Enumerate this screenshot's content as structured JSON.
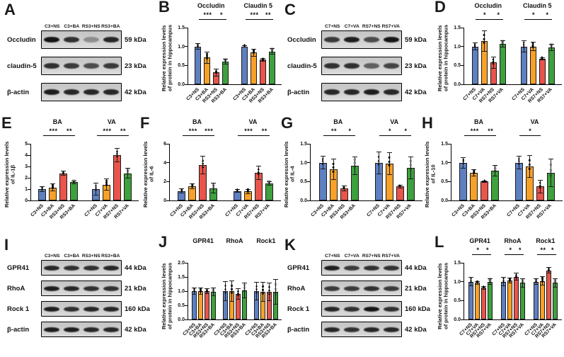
{
  "colors": {
    "bar_series": [
      "#5e80c1",
      "#f7a128",
      "#e9544b",
      "#3ea13e"
    ],
    "axis": "#000000",
    "background": "#ffffff"
  },
  "marker_glyphs": [
    "●",
    "■",
    "▲",
    "▽"
  ],
  "blots": [
    {
      "panel": "A",
      "lanes": [
        "C3+NS",
        "C3+BA",
        "RS3+NS",
        "RS3+BA"
      ],
      "rows": [
        {
          "protein": "Occludin",
          "kda": "59 kDa",
          "band_intensity": [
            1.0,
            0.85,
            0.35,
            0.9
          ]
        },
        {
          "protein": "claudin-5",
          "kda": "23 kDa",
          "band_intensity": [
            0.85,
            0.8,
            0.7,
            0.8
          ]
        },
        {
          "protein": "β-actin",
          "kda": "42 kDa",
          "band_intensity": [
            0.95,
            0.9,
            0.9,
            0.9
          ]
        }
      ]
    },
    {
      "panel": "C",
      "lanes": [
        "C7+NS",
        "C7+VA",
        "RS7+NS",
        "RS7+VA"
      ],
      "rows": [
        {
          "protein": "Occludin",
          "kda": "59 kDa",
          "band_intensity": [
            0.8,
            0.95,
            0.7,
            1.0
          ]
        },
        {
          "protein": "claudin-5",
          "kda": "23 kDa",
          "band_intensity": [
            0.85,
            0.85,
            0.6,
            0.75
          ]
        },
        {
          "protein": "β-actin",
          "kda": "42 kDa",
          "band_intensity": [
            0.9,
            0.9,
            0.95,
            0.9
          ]
        }
      ]
    },
    {
      "panel": "I",
      "lanes": [
        "C3+NS",
        "C3+BA",
        "RS3+NS",
        "RS3+BA"
      ],
      "rows": [
        {
          "protein": "GPR41",
          "kda": "44 kDa",
          "band_intensity": [
            0.9,
            0.85,
            0.85,
            0.9
          ]
        },
        {
          "protein": "RhoA",
          "kda": "21 kDa",
          "band_intensity": [
            0.95,
            0.9,
            0.85,
            0.85
          ]
        },
        {
          "protein": "Rock 1",
          "kda": "160 kDa",
          "band_intensity": [
            0.95,
            0.85,
            0.9,
            0.9
          ]
        },
        {
          "protein": "β-actin",
          "kda": "42 kDa",
          "band_intensity": [
            0.95,
            0.95,
            0.9,
            0.9
          ]
        }
      ]
    },
    {
      "panel": "K",
      "lanes": [
        "C7+NS",
        "C7+VA",
        "RS7+NS",
        "RS7+VA"
      ],
      "rows": [
        {
          "protein": "GPR41",
          "kda": "44 kDa",
          "band_intensity": [
            0.95,
            0.8,
            0.85,
            0.85
          ]
        },
        {
          "protein": "RhoA",
          "kda": "21 kDa",
          "band_intensity": [
            0.8,
            0.8,
            0.85,
            0.8
          ]
        },
        {
          "protein": "Rock 1",
          "kda": "160 kDa",
          "band_intensity": [
            0.9,
            0.85,
            1.0,
            0.85
          ]
        },
        {
          "protein": "β-actin",
          "kda": "42 kDa",
          "band_intensity": [
            0.9,
            0.85,
            0.9,
            0.9
          ]
        }
      ]
    }
  ],
  "chart_data": [
    {
      "panel": "B",
      "type": "bar",
      "ylabel": [
        "Relative expression levels",
        "of protein in hippocampus"
      ],
      "ylim": [
        0,
        1.5
      ],
      "yticks": [
        "0.0",
        "0.5",
        "1.0",
        "1.5"
      ],
      "groups": [
        {
          "title": "Occludin",
          "categories": [
            "C3+NS",
            "C3+BA",
            "RS3+NS",
            "RS3+BA"
          ],
          "values": [
            1.0,
            0.71,
            0.31,
            0.6
          ],
          "errors": [
            0.08,
            0.16,
            0.1,
            0.07
          ],
          "significance": [
            {
              "from": 0,
              "to": 2,
              "label": "***"
            },
            {
              "from": 2,
              "to": 3,
              "label": "*"
            }
          ]
        },
        {
          "title": "Claudin 5",
          "categories": [
            "C3+NS",
            "C3+BA",
            "RS3+NS",
            "RS3+BA"
          ],
          "values": [
            1.0,
            0.84,
            0.65,
            0.87
          ],
          "errors": [
            0.03,
            0.1,
            0.05,
            0.08
          ],
          "significance": [
            {
              "from": 0,
              "to": 2,
              "label": "***"
            },
            {
              "from": 2,
              "to": 3,
              "label": "**"
            }
          ]
        }
      ]
    },
    {
      "panel": "D",
      "type": "bar",
      "ylabel": [
        "Relative expression levels",
        "of protein in hippocampus"
      ],
      "ylim": [
        0,
        1.5
      ],
      "yticks": [
        "0.0",
        "0.5",
        "1.0",
        "1.5"
      ],
      "groups": [
        {
          "title": "Occludin",
          "categories": [
            "C7+NS",
            "C7+VA",
            "RS7+NS",
            "RS7+VA"
          ],
          "values": [
            1.0,
            1.15,
            0.58,
            1.07
          ],
          "errors": [
            0.1,
            0.28,
            0.16,
            0.1
          ],
          "significance": [
            {
              "from": 0,
              "to": 2,
              "label": "*"
            },
            {
              "from": 2,
              "to": 3,
              "label": "*"
            }
          ]
        },
        {
          "title": "Claudin 5",
          "categories": [
            "C7+NS",
            "C7+VA",
            "RS7+NS",
            "RS7+VA"
          ],
          "values": [
            1.0,
            1.0,
            0.68,
            0.98
          ],
          "errors": [
            0.16,
            0.12,
            0.04,
            0.09
          ],
          "significance": [
            {
              "from": 0,
              "to": 2,
              "label": "*"
            },
            {
              "from": 2,
              "to": 3,
              "label": "*"
            }
          ]
        }
      ]
    },
    {
      "panel": "E",
      "type": "bar",
      "ylabel": [
        "Relative expression levels",
        "of IL-1β"
      ],
      "ylim": [
        0,
        5
      ],
      "yticks": [
        "0",
        "1",
        "2",
        "3",
        "4",
        "5"
      ],
      "groups": [
        {
          "title": "BA",
          "categories": [
            "C3+NS",
            "C3+BA",
            "RS3+NS",
            "RS3+BA"
          ],
          "values": [
            1.0,
            1.15,
            2.4,
            1.6
          ],
          "errors": [
            0.25,
            0.35,
            0.2,
            0.15
          ],
          "significance": [
            {
              "from": 0,
              "to": 2,
              "label": "***"
            },
            {
              "from": 2,
              "to": 3,
              "label": "**"
            }
          ]
        },
        {
          "title": "VA",
          "categories": [
            "C7+NS",
            "C7+VA",
            "RS7+NS",
            "RS7+VA"
          ],
          "values": [
            1.0,
            1.4,
            4.0,
            2.4
          ],
          "errors": [
            0.55,
            0.55,
            0.65,
            0.45
          ],
          "significance": [
            {
              "from": 0,
              "to": 2,
              "label": "***"
            },
            {
              "from": 2,
              "to": 3,
              "label": "**"
            }
          ]
        }
      ]
    },
    {
      "panel": "F",
      "type": "bar",
      "ylabel": [
        "Relative expression levels",
        "of IL-6"
      ],
      "ylim": [
        0,
        6
      ],
      "yticks": [
        "0",
        "2",
        "4",
        "6"
      ],
      "groups": [
        {
          "title": "BA",
          "categories": [
            "C3+NS",
            "C3+BA",
            "RS3+NS",
            "RS3+BA"
          ],
          "values": [
            1.0,
            1.5,
            3.75,
            1.3
          ],
          "errors": [
            0.25,
            0.3,
            1.0,
            0.55
          ],
          "significance": [
            {
              "from": 0,
              "to": 2,
              "label": "***"
            },
            {
              "from": 2,
              "to": 3,
              "label": "***"
            }
          ]
        },
        {
          "title": "VA",
          "categories": [
            "C7+NS",
            "C7+VA",
            "RS7+NS",
            "RS7+VA"
          ],
          "values": [
            1.0,
            0.95,
            2.9,
            1.8
          ],
          "errors": [
            0.2,
            0.25,
            0.75,
            0.2
          ],
          "significance": [
            {
              "from": 0,
              "to": 2,
              "label": "***"
            },
            {
              "from": 2,
              "to": 3,
              "label": "**"
            }
          ]
        }
      ]
    },
    {
      "panel": "G",
      "type": "bar",
      "ylabel": [
        "Relative expression levels",
        "of IL-4"
      ],
      "ylim": [
        0,
        1.5
      ],
      "yticks": [
        "0.0",
        "0.5",
        "1.0",
        "1.5"
      ],
      "groups": [
        {
          "title": "BA",
          "categories": [
            "C3+NS",
            "C3+BA",
            "RS3+NS",
            "RS3+BA"
          ],
          "values": [
            1.0,
            0.82,
            0.32,
            0.92
          ],
          "errors": [
            0.18,
            0.28,
            0.07,
            0.25
          ],
          "significance": [
            {
              "from": 0,
              "to": 2,
              "label": "**"
            },
            {
              "from": 2,
              "to": 3,
              "label": "*"
            }
          ]
        },
        {
          "title": "VA",
          "categories": [
            "C7+NS",
            "C7+VA",
            "RS7+NS",
            "RS7+VA"
          ],
          "values": [
            1.0,
            0.98,
            0.37,
            0.87
          ],
          "errors": [
            0.3,
            0.3,
            0.05,
            0.3
          ],
          "significance": [
            {
              "from": 0,
              "to": 2,
              "label": "*"
            },
            {
              "from": 2,
              "to": 3,
              "label": "*"
            }
          ]
        }
      ]
    },
    {
      "panel": "H",
      "type": "bar",
      "ylabel": [
        "Relative expression levels",
        "of IL-10"
      ],
      "ylim": [
        0,
        1.5
      ],
      "yticks": [
        "0.0",
        "0.5",
        "1.0",
        "1.5"
      ],
      "groups": [
        {
          "title": "BA",
          "categories": [
            "C3+NS",
            "C3+BA",
            "RS3+NS",
            "RS3+BA"
          ],
          "values": [
            1.0,
            0.73,
            0.5,
            0.78
          ],
          "errors": [
            0.15,
            0.1,
            0.03,
            0.15
          ],
          "significance": [
            {
              "from": 0,
              "to": 2,
              "label": "***"
            },
            {
              "from": 2,
              "to": 3,
              "label": "**"
            }
          ]
        },
        {
          "title": "VA",
          "categories": [
            "C7+NS",
            "C7+VA",
            "RS7+NS",
            "RS7+VA"
          ],
          "values": [
            1.0,
            0.9,
            0.37,
            0.73
          ],
          "errors": [
            0.18,
            0.3,
            0.18,
            0.38
          ],
          "significance": [
            {
              "from": 0,
              "to": 2,
              "label": "*"
            }
          ]
        }
      ]
    },
    {
      "panel": "J",
      "type": "bar",
      "ylabel": [
        "Relative expression levels",
        "of protein in hippocampus"
      ],
      "ylim": [
        0,
        2.0
      ],
      "yticks": [
        "0.0",
        "0.5",
        "1.0",
        "1.5",
        "2.0"
      ],
      "groups": [
        {
          "title": "GPR41",
          "categories": [
            "C3+NS",
            "C3+BA",
            "RS3+NS",
            "RS3+BA"
          ],
          "values": [
            1.0,
            1.0,
            1.0,
            0.98
          ],
          "errors": [
            0.12,
            0.12,
            0.1,
            0.15
          ],
          "significance": []
        },
        {
          "title": "RhoA",
          "categories": [
            "C3+NS",
            "C3+BA",
            "RS3+NS",
            "RS3+BA"
          ],
          "values": [
            1.0,
            1.0,
            0.9,
            1.03
          ],
          "errors": [
            0.35,
            0.38,
            0.2,
            0.28
          ],
          "significance": []
        },
        {
          "title": "Rock1",
          "categories": [
            "C3+NS",
            "C3+BA",
            "RS3+NS",
            "RS3+BA"
          ],
          "values": [
            1.0,
            0.98,
            0.98,
            0.98
          ],
          "errors": [
            0.32,
            0.35,
            0.33,
            0.45
          ],
          "significance": []
        }
      ]
    },
    {
      "panel": "L",
      "type": "bar",
      "ylabel": [
        "Relative expression levels",
        "of protein in hippocampus"
      ],
      "ylim": [
        0,
        1.5
      ],
      "yticks": [
        "0.0",
        "0.5",
        "1.0",
        "1.5"
      ],
      "groups": [
        {
          "title": "GPR41",
          "categories": [
            "C7+NS",
            "C7+VA",
            "RS7+NS",
            "RS7+VA"
          ],
          "values": [
            1.0,
            0.97,
            0.84,
            1.0
          ],
          "errors": [
            0.12,
            0.05,
            0.05,
            0.08
          ],
          "significance": [
            {
              "from": 0,
              "to": 2,
              "label": "*"
            },
            {
              "from": 2,
              "to": 3,
              "label": "*"
            }
          ]
        },
        {
          "title": "RhoA",
          "categories": [
            "C7+NS",
            "C7+VA",
            "RS7+NS",
            "RS7+VA"
          ],
          "values": [
            1.0,
            1.03,
            1.13,
            0.97
          ],
          "errors": [
            0.12,
            0.07,
            0.1,
            0.12
          ],
          "significance": [
            {
              "from": 0,
              "to": 2,
              "label": "*"
            },
            {
              "from": 2,
              "to": 3,
              "label": "*"
            }
          ]
        },
        {
          "title": "Rock1",
          "categories": [
            "C7+NS",
            "C7+VA",
            "RS7+NS",
            "RS7+VA"
          ],
          "values": [
            1.0,
            1.02,
            1.3,
            0.97
          ],
          "errors": [
            0.08,
            0.12,
            0.08,
            0.12
          ],
          "significance": [
            {
              "from": 0,
              "to": 2,
              "label": "**"
            },
            {
              "from": 2,
              "to": 3,
              "label": "*"
            }
          ]
        }
      ]
    }
  ]
}
